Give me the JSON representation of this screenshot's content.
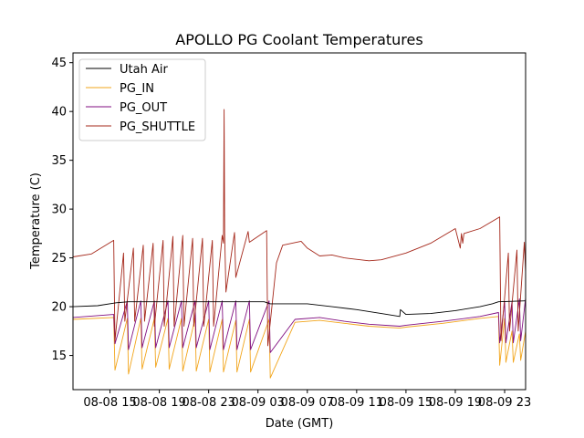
{
  "chart_data": {
    "type": "line",
    "title": "APOLLO PG Coolant Temperatures",
    "xlabel": "Date (GMT)",
    "ylabel": "Temperature (C)",
    "x_unit": "hours since 08-08 12:00 GMT",
    "xlim": [
      0,
      36.7
    ],
    "ylim": [
      11.5,
      46.0
    ],
    "yticks": [
      15,
      20,
      25,
      30,
      35,
      40,
      45
    ],
    "xticks": [
      {
        "x": 3,
        "label": "08-08 15"
      },
      {
        "x": 7,
        "label": "08-08 19"
      },
      {
        "x": 11,
        "label": "08-08 23"
      },
      {
        "x": 15,
        "label": "08-09 03"
      },
      {
        "x": 19,
        "label": "08-09 07"
      },
      {
        "x": 23,
        "label": "08-09 11"
      },
      {
        "x": 27,
        "label": "08-09 15"
      },
      {
        "x": 31,
        "label": "08-09 19"
      },
      {
        "x": 35,
        "label": "08-09 23"
      }
    ],
    "legend": {
      "placement": "top-left"
    },
    "series": [
      {
        "name": "Utah Air",
        "color": "#000000",
        "x": [
          0,
          2,
          3.5,
          4.5,
          6,
          8,
          10,
          12,
          14,
          15.5,
          16,
          17,
          19,
          21,
          23,
          25,
          26.5,
          26.55,
          27,
          29,
          31,
          33,
          34,
          34.5,
          36.7
        ],
        "y": [
          20.0,
          20.1,
          20.4,
          20.5,
          20.5,
          20.5,
          20.5,
          20.5,
          20.5,
          20.5,
          20.3,
          20.3,
          20.3,
          20.0,
          19.7,
          19.3,
          19.0,
          19.7,
          19.2,
          19.3,
          19.6,
          20.0,
          20.3,
          20.5,
          20.6
        ]
      },
      {
        "name": "PG_IN",
        "color": "#f2a51b",
        "x": [
          0,
          3.3,
          3.4,
          4.4,
          4.5,
          5.5,
          5.6,
          6.6,
          6.7,
          7.7,
          7.8,
          8.8,
          8.9,
          9.9,
          10.0,
          11.0,
          11.1,
          12.1,
          12.2,
          13.2,
          13.3,
          14.3,
          14.4,
          15.9,
          16.0,
          18,
          20,
          22,
          24,
          26.5,
          27,
          30,
          33,
          34.5,
          34.6,
          35.0,
          35.1,
          35.6,
          35.7,
          36.2,
          36.3,
          36.7
        ],
        "y": [
          18.7,
          18.9,
          13.5,
          18.8,
          13.1,
          18.8,
          13.6,
          18.8,
          13.8,
          18.8,
          13.6,
          18.8,
          13.4,
          18.8,
          13.4,
          18.7,
          13.3,
          18.7,
          13.3,
          18.6,
          13.3,
          18.7,
          13.3,
          18.7,
          12.7,
          18.4,
          18.6,
          18.3,
          18.0,
          17.8,
          17.9,
          18.3,
          18.8,
          19.0,
          14.0,
          18.8,
          14.3,
          17.5,
          14.3,
          17.2,
          14.5,
          17.5
        ]
      },
      {
        "name": "PG_OUT",
        "color": "#800e80",
        "x": [
          0,
          3.3,
          3.4,
          4.4,
          4.5,
          5.5,
          5.6,
          6.6,
          6.7,
          7.7,
          7.8,
          8.8,
          8.9,
          9.9,
          10.0,
          11.0,
          11.1,
          12.1,
          12.2,
          13.2,
          13.3,
          14.3,
          14.4,
          15.9,
          16.0,
          18,
          20,
          22,
          24,
          26.5,
          27,
          30,
          33,
          34.5,
          34.6,
          35.0,
          35.1,
          35.6,
          35.7,
          36.2,
          36.3,
          36.7
        ],
        "y": [
          18.9,
          19.2,
          16.2,
          20.6,
          15.6,
          20.6,
          15.8,
          20.6,
          15.8,
          20.6,
          15.8,
          20.6,
          15.8,
          20.6,
          15.8,
          20.6,
          15.6,
          20.6,
          15.6,
          20.6,
          15.6,
          20.6,
          15.6,
          20.6,
          15.3,
          18.7,
          18.9,
          18.5,
          18.2,
          18.0,
          18.1,
          18.5,
          19.0,
          19.4,
          16.3,
          20.5,
          16.3,
          20.5,
          16.3,
          20.8,
          16.5,
          20.9
        ]
      },
      {
        "name": "PG_SHUTTLE",
        "color": "#a5281b",
        "x": [
          0,
          1.5,
          3.3,
          3.4,
          4.1,
          4.2,
          4.9,
          5.0,
          5.7,
          5.8,
          6.5,
          6.6,
          7.3,
          7.4,
          8.1,
          8.2,
          8.9,
          9.0,
          9.7,
          9.8,
          10.5,
          10.6,
          11.3,
          11.4,
          12.1,
          12.2,
          12.25,
          12.3,
          12.4,
          13.1,
          13.2,
          14.2,
          14.3,
          15.7,
          15.8,
          16.5,
          17.0,
          18.5,
          19.0,
          20.0,
          21.0,
          22.0,
          24.0,
          25.0,
          27.0,
          29.0,
          31.0,
          31.4,
          31.5,
          31.6,
          31.7,
          33.0,
          34.6,
          34.7,
          35.3,
          35.4,
          36.0,
          36.1,
          36.6,
          36.7
        ],
        "y": [
          25.1,
          25.4,
          26.8,
          16.5,
          25.5,
          18.5,
          26.0,
          18.5,
          26.3,
          18.5,
          26.5,
          18.0,
          26.8,
          18.0,
          27.2,
          18.0,
          27.3,
          18.0,
          27.0,
          18.0,
          27.0,
          18.0,
          26.8,
          18.0,
          27.3,
          26.5,
          40.2,
          27.5,
          21.5,
          27.6,
          23.0,
          27.7,
          26.6,
          27.8,
          16.0,
          24.5,
          26.3,
          26.7,
          26.0,
          25.2,
          25.3,
          25.0,
          24.7,
          24.8,
          25.5,
          26.5,
          28.0,
          26.0,
          27.5,
          26.5,
          27.5,
          28.0,
          29.2,
          16.5,
          25.5,
          17.5,
          25.8,
          17.5,
          26.6,
          23.5
        ]
      }
    ]
  }
}
